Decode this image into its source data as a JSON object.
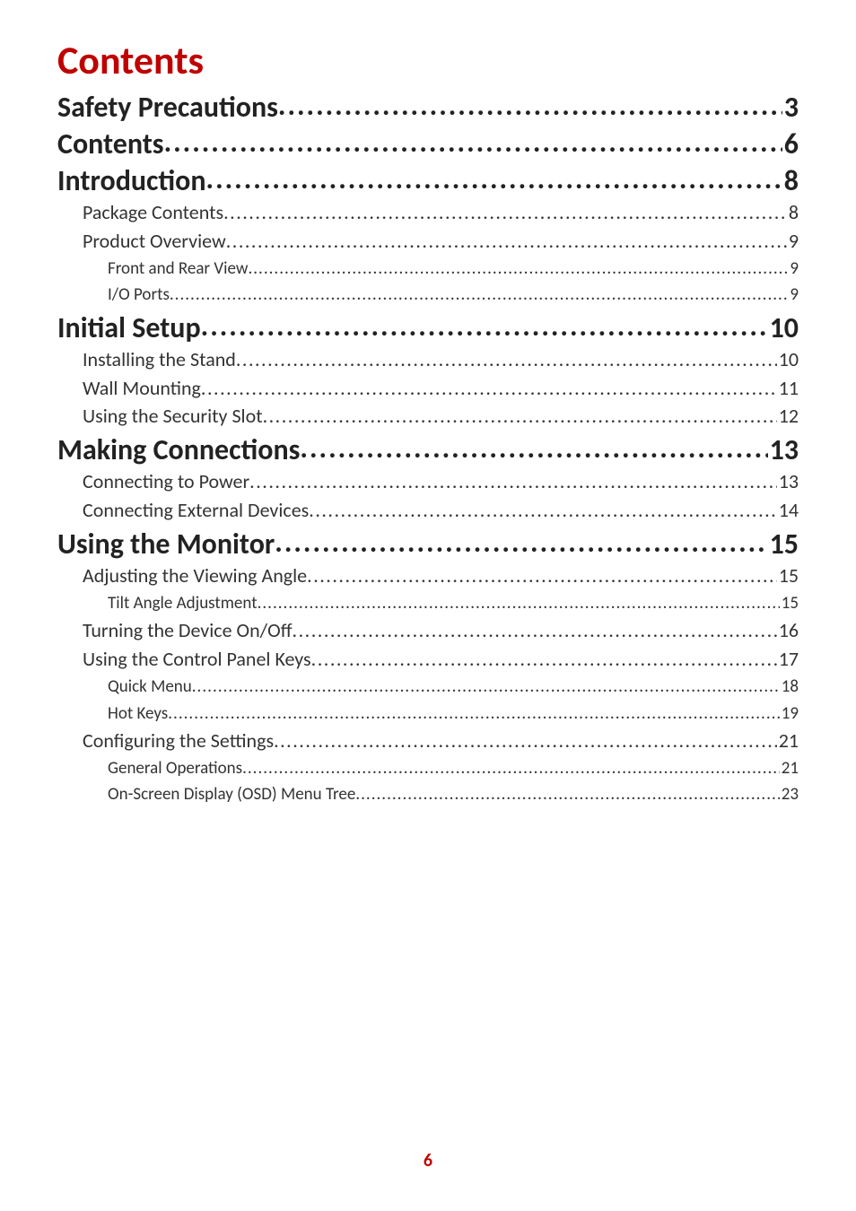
{
  "title": "Contents",
  "title_color": "#c00000",
  "text_color": "#222222",
  "page_number": "6",
  "page_number_color": "#c00000",
  "entries": [
    {
      "level": 1,
      "label": "Safety Precautions",
      "page": "3"
    },
    {
      "level": 1,
      "label": "Contents",
      "page": "6"
    },
    {
      "level": 1,
      "label": "Introduction ",
      "page": "8"
    },
    {
      "level": 2,
      "label": "Package Contents",
      "page": "8"
    },
    {
      "level": 2,
      "label": "Product Overview",
      "page": "9"
    },
    {
      "level": 3,
      "label": "Front and Rear View",
      "page": "9"
    },
    {
      "level": 3,
      "label": "I/O Ports ",
      "page": "9"
    },
    {
      "level": 1,
      "label": "Initial Setup",
      "page": "10"
    },
    {
      "level": 2,
      "label": "Installing the Stand",
      "page": "10"
    },
    {
      "level": 2,
      "label": "Wall Mounting",
      "page": "11"
    },
    {
      "level": 2,
      "label": "Using the Security Slot",
      "page": "12"
    },
    {
      "level": 1,
      "label": "Making Connections",
      "page": "13"
    },
    {
      "level": 2,
      "label": "Connecting to Power",
      "page": "13"
    },
    {
      "level": 2,
      "label": "Connecting External Devices",
      "page": "14"
    },
    {
      "level": 1,
      "label": "Using the Monitor ",
      "page": "15"
    },
    {
      "level": 2,
      "label": "Adjusting the Viewing Angle",
      "page": "15"
    },
    {
      "level": 3,
      "label": "Tilt Angle Adjustment",
      "page": "15"
    },
    {
      "level": 2,
      "label": "Turning the Device On/Off",
      "page": "16"
    },
    {
      "level": 2,
      "label": "Using the Control Panel Keys",
      "page": "17"
    },
    {
      "level": 3,
      "label": "Quick Menu",
      "page": "18"
    },
    {
      "level": 3,
      "label": "Hot Keys",
      "page": "19"
    },
    {
      "level": 2,
      "label": "Configuring the Settings",
      "page": "21"
    },
    {
      "level": 3,
      "label": "General Operations",
      "page": "21"
    },
    {
      "level": 3,
      "label": "On-Screen Display (OSD) Menu Tree",
      "page": "23"
    }
  ]
}
